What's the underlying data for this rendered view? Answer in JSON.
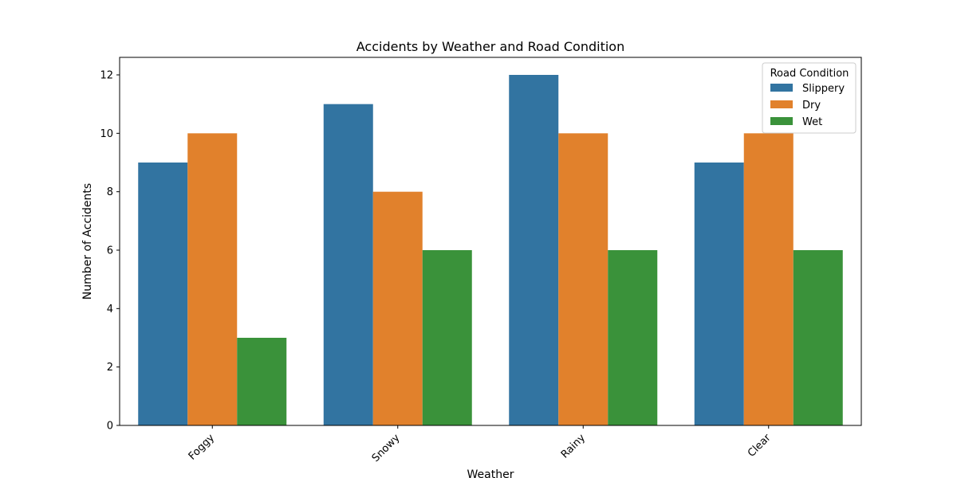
{
  "chart_data": {
    "type": "bar",
    "title": "Accidents by Weather and Road Condition",
    "xlabel": "Weather",
    "ylabel": "Number of Accidents",
    "categories": [
      "Foggy",
      "Snowy",
      "Rainy",
      "Clear"
    ],
    "series": [
      {
        "name": "Slippery",
        "color": "#3274a1",
        "values": [
          9,
          11,
          12,
          9
        ]
      },
      {
        "name": "Dry",
        "color": "#e1812c",
        "values": [
          10,
          8,
          10,
          10
        ]
      },
      {
        "name": "Wet",
        "color": "#3a923a",
        "values": [
          3,
          6,
          6,
          6
        ]
      }
    ],
    "ylim": [
      0,
      12.6
    ],
    "yticks": [
      "0",
      "2",
      "4",
      "6",
      "8",
      "10",
      "12"
    ],
    "grid": false,
    "legend": {
      "title": "Road Condition",
      "placement": "top-right"
    }
  }
}
